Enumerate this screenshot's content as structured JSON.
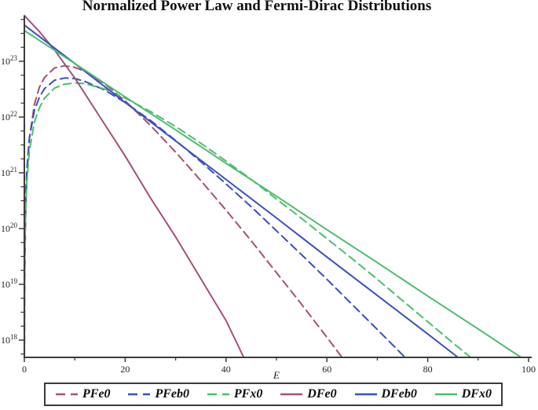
{
  "page": {
    "title": "Normalized Power Law and Fermi-Dirac Distributions"
  },
  "chart_data": {
    "type": "line",
    "title": "Normalized Power Law and Fermi-Dirac Distributions",
    "xlabel": "E",
    "ylabel": "",
    "grid": false,
    "legend_position": "bottom",
    "x_axis": {
      "min": 0,
      "max": 100,
      "ticks": [
        0,
        20,
        40,
        60,
        80,
        100
      ],
      "minor_ticks": [
        10,
        30,
        50,
        70,
        90
      ]
    },
    "y_axis": {
      "scale": "log10",
      "tick_label_base": "10",
      "tick_exponents": [
        23,
        22,
        21,
        20,
        19,
        18
      ],
      "min_value": "1e18",
      "max_value": "8e23"
    },
    "axis_color": "#3c3c3c",
    "series": [
      {
        "name": "PFe0",
        "line_style": "dashed",
        "color": "#a1517c",
        "points_format": [
          "E",
          "log10N"
        ],
        "points": [
          [
            0.03,
            17.94
          ],
          [
            0.05,
            18.49
          ],
          [
            0.1,
            19.24
          ],
          [
            0.2,
            19.99
          ],
          [
            0.3,
            20.4
          ],
          [
            0.5,
            20.93
          ],
          [
            1,
            21.61
          ],
          [
            2,
            22.23
          ],
          [
            3,
            22.54
          ],
          [
            4,
            22.71
          ],
          [
            6,
            22.88
          ],
          [
            8,
            22.92
          ],
          [
            10,
            22.89
          ],
          [
            12,
            22.82
          ],
          [
            16,
            22.59
          ],
          [
            20,
            22.29
          ],
          [
            25,
            21.85
          ],
          [
            30,
            21.37
          ],
          [
            35,
            20.86
          ],
          [
            40,
            20.33
          ],
          [
            45,
            19.78
          ],
          [
            50,
            19.21
          ],
          [
            55,
            18.64
          ],
          [
            60,
            18.05
          ],
          [
            63,
            17.69
          ]
        ]
      },
      {
        "name": "PFeb0",
        "line_style": "dashed",
        "color": "#3b4fc1",
        "points_format": [
          "E",
          "log10N"
        ],
        "points": [
          [
            0.01,
            17.72
          ],
          [
            0.02,
            18.32
          ],
          [
            0.05,
            19.11
          ],
          [
            0.1,
            19.71
          ],
          [
            0.2,
            20.3
          ],
          [
            0.3,
            20.64
          ],
          [
            0.5,
            21.07
          ],
          [
            1,
            21.62
          ],
          [
            2,
            22.12
          ],
          [
            3,
            22.36
          ],
          [
            4,
            22.51
          ],
          [
            6,
            22.66
          ],
          [
            8,
            22.7
          ],
          [
            10,
            22.69
          ],
          [
            12,
            22.64
          ],
          [
            16,
            22.48
          ],
          [
            20,
            22.26
          ],
          [
            25,
            21.94
          ],
          [
            30,
            21.58
          ],
          [
            35,
            21.2
          ],
          [
            40,
            20.8
          ],
          [
            45,
            20.39
          ],
          [
            50,
            19.96
          ],
          [
            55,
            19.53
          ],
          [
            60,
            19.09
          ],
          [
            65,
            18.64
          ],
          [
            70,
            18.19
          ],
          [
            75.5,
            17.69
          ]
        ]
      },
      {
        "name": "PFx0",
        "line_style": "dashed",
        "color": "#4cbd6d",
        "points_format": [
          "E",
          "log10N"
        ],
        "points": [
          [
            0.02,
            18.08
          ],
          [
            0.03,
            18.43
          ],
          [
            0.05,
            18.87
          ],
          [
            0.1,
            19.47
          ],
          [
            0.2,
            20.07
          ],
          [
            0.3,
            20.41
          ],
          [
            0.5,
            20.83
          ],
          [
            1,
            21.39
          ],
          [
            2,
            21.91
          ],
          [
            3,
            22.17
          ],
          [
            4,
            22.34
          ],
          [
            6,
            22.52
          ],
          [
            8,
            22.59
          ],
          [
            10,
            22.61
          ],
          [
            12,
            22.6
          ],
          [
            16,
            22.5
          ],
          [
            20,
            22.34
          ],
          [
            25,
            22.1
          ],
          [
            30,
            21.83
          ],
          [
            35,
            21.53
          ],
          [
            40,
            21.21
          ],
          [
            45,
            20.88
          ],
          [
            50,
            20.53
          ],
          [
            55,
            20.18
          ],
          [
            60,
            19.82
          ],
          [
            65,
            19.46
          ],
          [
            70,
            19.09
          ],
          [
            75,
            18.71
          ],
          [
            80,
            18.33
          ],
          [
            85,
            17.95
          ],
          [
            88.5,
            17.69
          ]
        ]
      },
      {
        "name": "DFe0",
        "line_style": "solid",
        "color": "#a1517c",
        "points_format": [
          "E",
          "log10N"
        ],
        "points": [
          [
            0,
            23.82
          ],
          [
            3,
            23.53
          ],
          [
            6,
            23.2
          ],
          [
            10,
            22.7
          ],
          [
            15,
            22.0
          ],
          [
            20,
            21.3
          ],
          [
            25,
            20.55
          ],
          [
            30,
            19.85
          ],
          [
            35,
            19.1
          ],
          [
            40,
            18.35
          ],
          [
            43.5,
            17.69
          ]
        ]
      },
      {
        "name": "DFeb0",
        "line_style": "solid",
        "color": "#3b4fc1",
        "points_format": [
          "E",
          "log10N"
        ],
        "points": [
          [
            0,
            23.65
          ],
          [
            10,
            22.96
          ],
          [
            20,
            22.26
          ],
          [
            30,
            21.57
          ],
          [
            40,
            20.88
          ],
          [
            50,
            20.19
          ],
          [
            60,
            19.49
          ],
          [
            70,
            18.8
          ],
          [
            80,
            18.11
          ],
          [
            86,
            17.69
          ]
        ]
      },
      {
        "name": "DFx0",
        "line_style": "solid",
        "color": "#4cbd6d",
        "points_format": [
          "E",
          "log10N"
        ],
        "points": [
          [
            0,
            23.55
          ],
          [
            10,
            22.96
          ],
          [
            20,
            22.36
          ],
          [
            30,
            21.77
          ],
          [
            40,
            21.17
          ],
          [
            50,
            20.58
          ],
          [
            60,
            19.98
          ],
          [
            70,
            19.39
          ],
          [
            80,
            18.79
          ],
          [
            90,
            18.2
          ],
          [
            98.5,
            17.69
          ]
        ]
      }
    ]
  }
}
